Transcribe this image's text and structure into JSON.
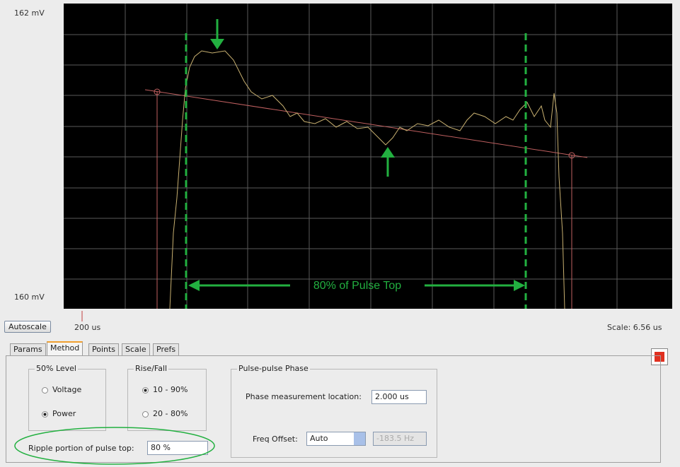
{
  "plot": {
    "y_top": "162 mV",
    "y_bottom": "160 mV",
    "x_left": "200 us",
    "scale": "Scale: 6.56 us",
    "annotation": "80% of Pulse Top"
  },
  "toolbar": {
    "autoscale": "Autoscale"
  },
  "tabs": [
    "Params",
    "Method",
    "Points",
    "Scale",
    "Prefs"
  ],
  "level_group": {
    "title": "50% Level",
    "options": [
      "Voltage",
      "Power"
    ]
  },
  "rise_fall_group": {
    "title": "Rise/Fall",
    "options": [
      "10 - 90%",
      "20 - 80%"
    ]
  },
  "phase_group": {
    "title": "Pulse-pulse Phase",
    "location_label": "Phase measurement location:",
    "location_value": "2.000 us",
    "freq_label": "Freq Offset:",
    "freq_mode": "Auto",
    "freq_value": "-183.5 Hz"
  },
  "ripple": {
    "label": "Ripple portion of pulse top:",
    "value": "80 %"
  }
}
